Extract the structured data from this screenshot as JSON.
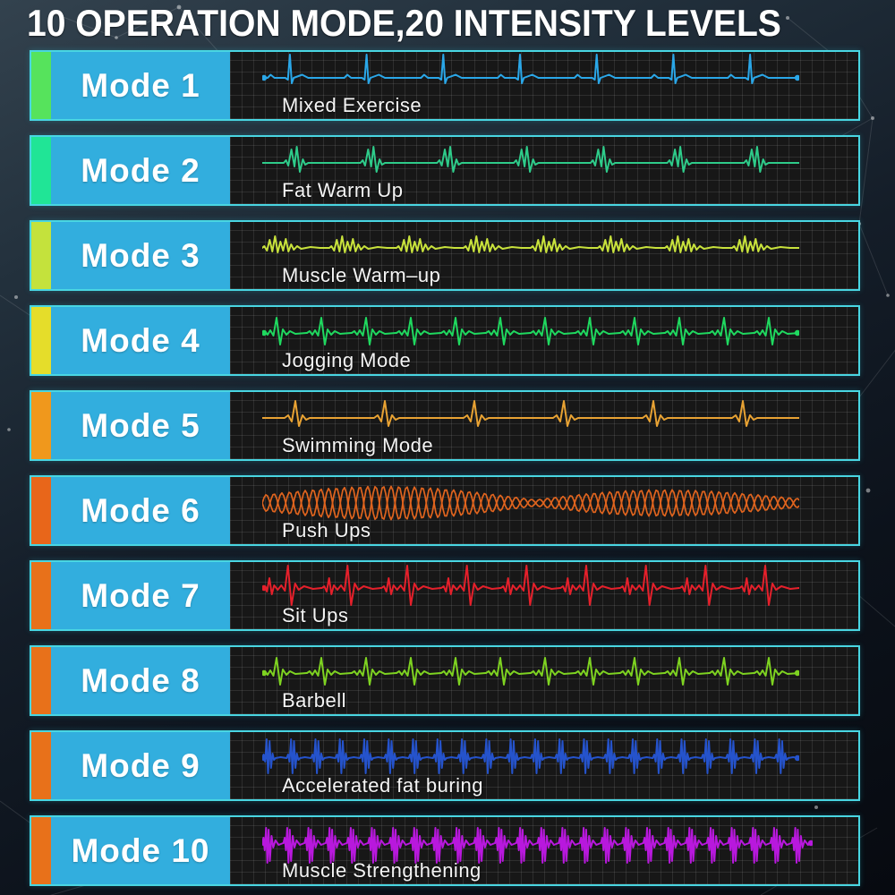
{
  "title": "10 OPERATION MODE,20 INTENSITY LEVELS",
  "theme": {
    "row_border_color": "#49d6e2",
    "mode_box_color": "#32aede",
    "panel_bg_color": "#171717",
    "title_color": "#ffffff"
  },
  "modes": [
    {
      "label": "Mode 1",
      "name": "Mixed Exercise",
      "accent_color": "#56e35c",
      "wave_color": "#2aa7e8",
      "wave_pattern": "ecg_sparse"
    },
    {
      "label": "Mode 2",
      "name": "Fat Warm Up",
      "accent_color": "#20e596",
      "wave_color": "#2ecc8a",
      "wave_pattern": "ecg_wiggle"
    },
    {
      "label": "Mode 3",
      "name": "Muscle Warm–up",
      "accent_color": "#c4e23c",
      "wave_color": "#c8e23c",
      "wave_pattern": "noisy"
    },
    {
      "label": "Mode 4",
      "name": "Jogging Mode",
      "accent_color": "#e5dd2a",
      "wave_color": "#1fd95f",
      "wave_pattern": "ecg_dense"
    },
    {
      "label": "Mode 5",
      "name": "Swimming Mode",
      "accent_color": "#f0981c",
      "wave_color": "#e8a233",
      "wave_pattern": "sparse_cluster"
    },
    {
      "label": "Mode 6",
      "name": "Push Ups",
      "accent_color": "#e8661a",
      "wave_color": "#e0641e",
      "wave_pattern": "spindle"
    },
    {
      "label": "Mode 7",
      "name": "Sit Ups",
      "accent_color": "#e8711a",
      "wave_color": "#e5202b",
      "wave_pattern": "ecg_tall"
    },
    {
      "label": "Mode 8",
      "name": "Barbell",
      "accent_color": "#e8711a",
      "wave_color": "#7ed321",
      "wave_pattern": "ecg_dense"
    },
    {
      "label": "Mode 9",
      "name": "Accelerated fat buring",
      "accent_color": "#e8711a",
      "wave_color": "#2553cc",
      "wave_pattern": "burst"
    },
    {
      "label": "Mode 10",
      "name": "Muscle Strengthening",
      "accent_color": "#e8711a",
      "wave_color": "#b818dd",
      "wave_pattern": "burst_dense"
    }
  ]
}
